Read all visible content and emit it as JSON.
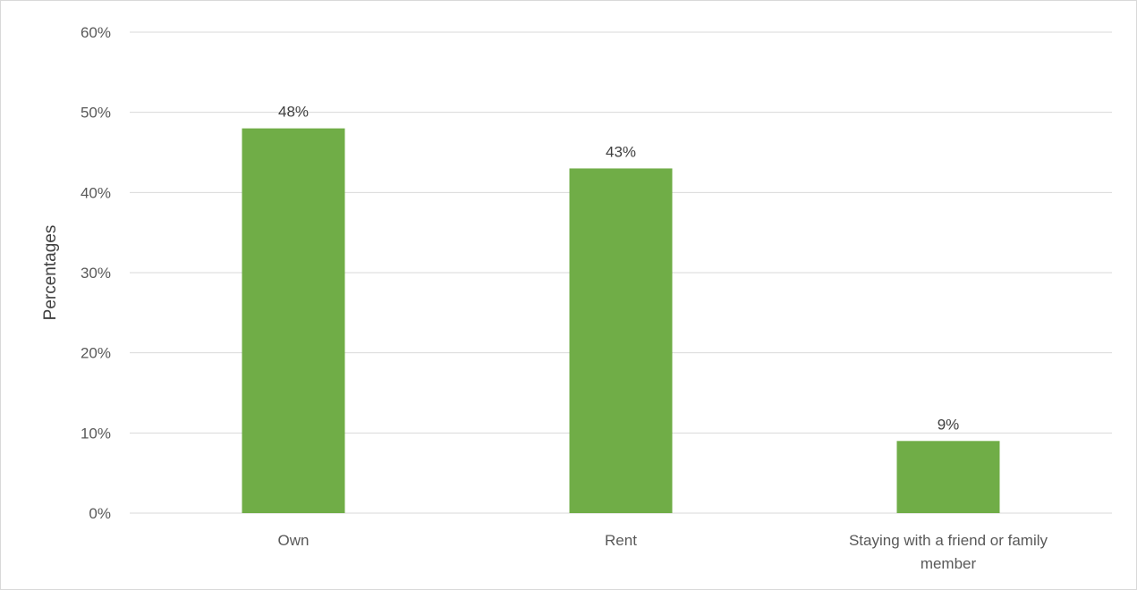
{
  "chart_data": {
    "type": "bar",
    "title": "",
    "xlabel": "",
    "ylabel": "Percentages",
    "categories": [
      [
        "Own"
      ],
      [
        "Rent"
      ],
      [
        "Staying with a friend or family",
        "member"
      ]
    ],
    "values": [
      48,
      43,
      9
    ],
    "data_labels": [
      "48%",
      "43%",
      "9%"
    ],
    "ylim": [
      0,
      60
    ],
    "yticks": [
      0,
      10,
      20,
      30,
      40,
      50,
      60
    ],
    "ytick_labels": [
      "0%",
      "10%",
      "20%",
      "30%",
      "40%",
      "50%",
      "60%"
    ],
    "grid": true,
    "legend": "none",
    "bar_color": "#70ad47",
    "grid_color": "#d9d9d9"
  }
}
